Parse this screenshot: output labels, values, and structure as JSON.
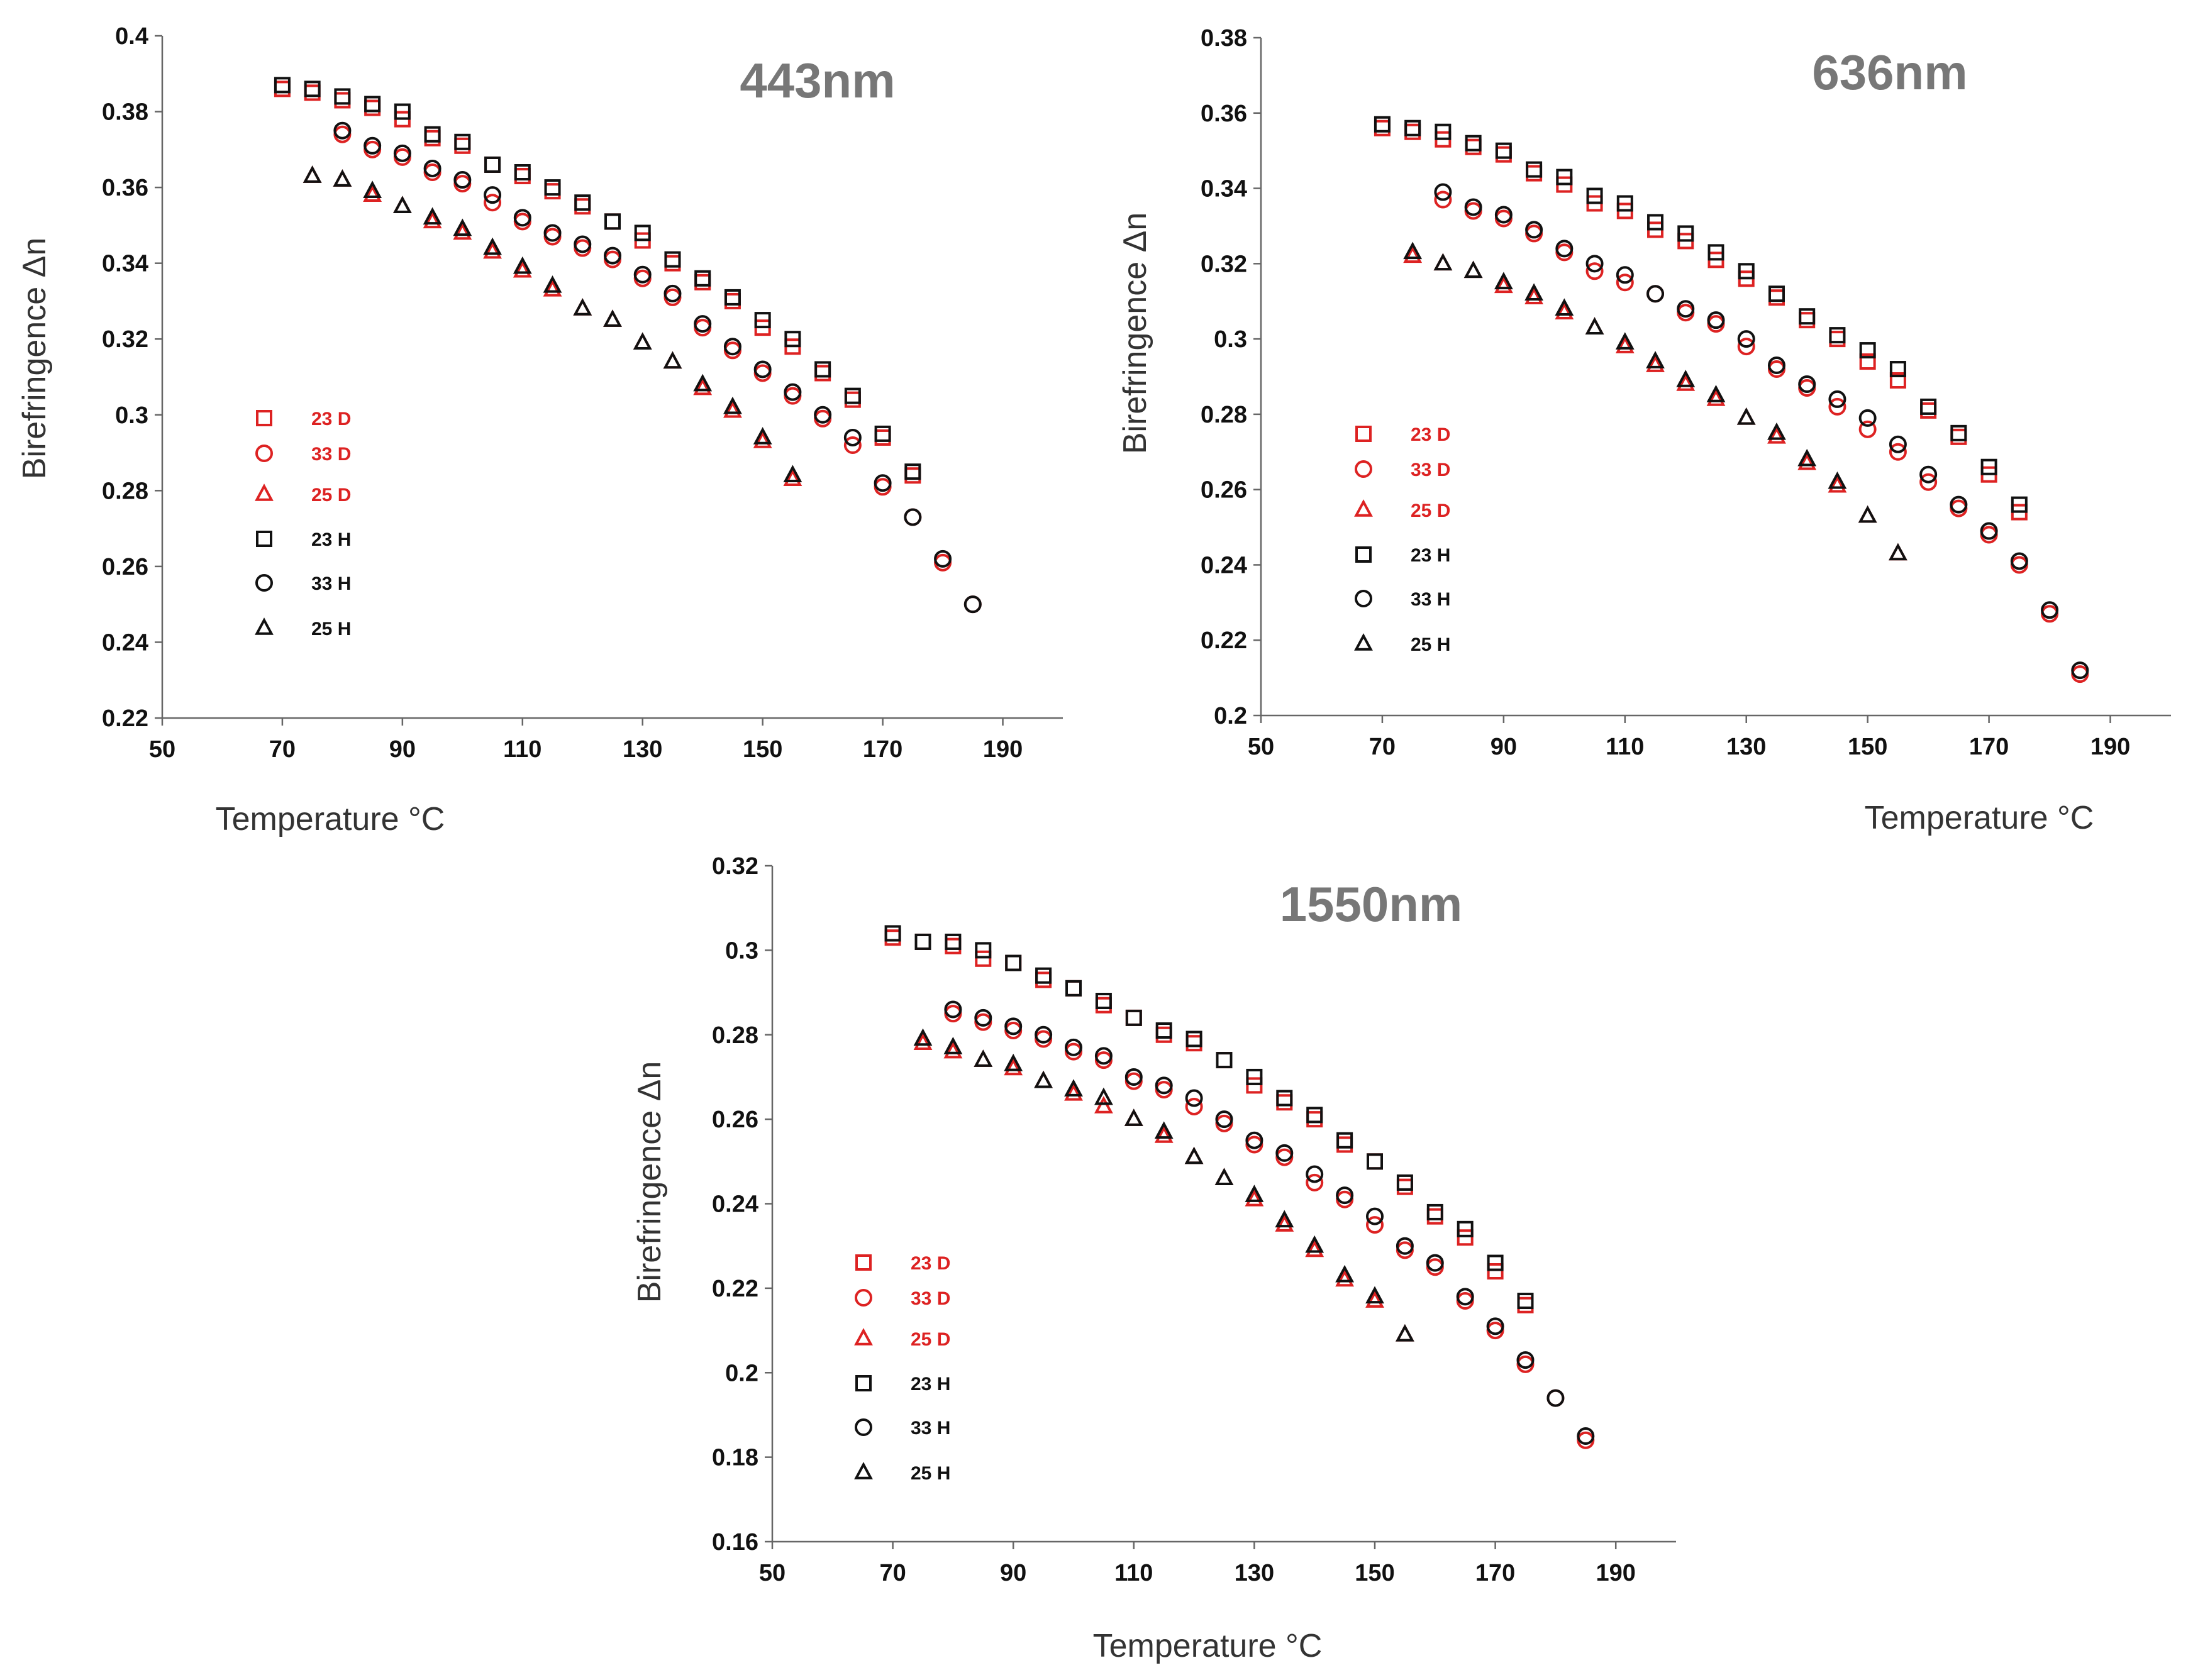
{
  "colors": {
    "series_D": "#dd2222",
    "series_H": "#111111",
    "axis": "#666666",
    "title": "#777777"
  },
  "chart_data": [
    {
      "type": "scatter",
      "title": "443nm",
      "xlabel": "Temperature °C",
      "ylabel": "Birefringence Δn",
      "xlim": [
        50,
        200
      ],
      "ylim": [
        0.22,
        0.4
      ],
      "xticks": [
        50,
        70,
        90,
        110,
        130,
        150,
        170,
        190
      ],
      "yticks": [
        "0.22",
        "0.24",
        "0.26",
        "0.28",
        "0.3",
        "0.32",
        "0.34",
        "0.36",
        "0.38",
        "0.4"
      ],
      "legend_position": "left",
      "series": [
        {
          "name": "23 D",
          "marker": "square",
          "color": "red",
          "x": [
            70,
            75,
            80,
            85,
            90,
            95,
            100,
            105,
            110,
            115,
            120,
            125,
            130,
            135,
            140,
            145,
            150,
            155,
            160,
            165,
            170,
            175
          ],
          "y": [
            0.386,
            0.385,
            0.383,
            0.381,
            0.378,
            0.373,
            0.371,
            0.366,
            0.363,
            0.359,
            0.355,
            0.351,
            0.346,
            0.34,
            0.335,
            0.33,
            0.323,
            0.318,
            0.311,
            0.304,
            0.294,
            0.284
          ]
        },
        {
          "name": "33 D",
          "marker": "circle",
          "color": "red",
          "x": [
            80,
            85,
            90,
            95,
            100,
            105,
            110,
            115,
            120,
            125,
            130,
            135,
            140,
            145,
            150,
            155,
            160,
            165,
            170,
            175,
            180,
            185
          ],
          "y": [
            0.374,
            0.37,
            0.368,
            0.364,
            0.361,
            0.356,
            0.351,
            0.347,
            0.344,
            0.341,
            0.336,
            0.331,
            0.323,
            0.317,
            0.311,
            0.305,
            0.299,
            0.292,
            0.281,
            0.273,
            0.261,
            0.25
          ]
        },
        {
          "name": "25 D",
          "marker": "triangle",
          "color": "red",
          "x": [
            75,
            80,
            85,
            90,
            95,
            100,
            105,
            110,
            115,
            120,
            125,
            130,
            135,
            140,
            145,
            150,
            155
          ],
          "y": [
            0.363,
            0.362,
            0.358,
            0.355,
            0.351,
            0.348,
            0.343,
            0.338,
            0.333,
            0.328,
            0.325,
            0.319,
            0.314,
            0.307,
            0.301,
            0.293,
            0.283
          ]
        },
        {
          "name": "23 H",
          "marker": "square",
          "color": "black",
          "x": [
            70,
            75,
            80,
            85,
            90,
            95,
            100,
            105,
            110,
            115,
            120,
            125,
            130,
            135,
            140,
            145,
            150,
            155,
            160,
            165,
            170,
            175
          ],
          "y": [
            0.387,
            0.386,
            0.384,
            0.382,
            0.38,
            0.374,
            0.372,
            0.366,
            0.364,
            0.36,
            0.356,
            0.351,
            0.348,
            0.341,
            0.336,
            0.331,
            0.325,
            0.32,
            0.312,
            0.305,
            0.295,
            0.285
          ]
        },
        {
          "name": "33 H",
          "marker": "circle",
          "color": "black",
          "x": [
            80,
            85,
            90,
            95,
            100,
            105,
            110,
            115,
            120,
            125,
            130,
            135,
            140,
            145,
            150,
            155,
            160,
            165,
            170,
            175,
            180,
            185
          ],
          "y": [
            0.375,
            0.371,
            0.369,
            0.365,
            0.362,
            0.358,
            0.352,
            0.348,
            0.345,
            0.342,
            0.337,
            0.332,
            0.324,
            0.318,
            0.312,
            0.306,
            0.3,
            0.294,
            0.282,
            0.273,
            0.262,
            0.25
          ]
        },
        {
          "name": "25 H",
          "marker": "triangle",
          "color": "black",
          "x": [
            75,
            80,
            85,
            90,
            95,
            100,
            105,
            110,
            115,
            120,
            125,
            130,
            135,
            140,
            145,
            150,
            155
          ],
          "y": [
            0.363,
            0.362,
            0.359,
            0.355,
            0.352,
            0.349,
            0.344,
            0.339,
            0.334,
            0.328,
            0.325,
            0.319,
            0.314,
            0.308,
            0.302,
            0.294,
            0.284
          ]
        }
      ]
    },
    {
      "type": "scatter",
      "title": "636nm",
      "xlabel": "Temperature °C",
      "ylabel": "Birefringence Δn",
      "xlim": [
        50,
        200
      ],
      "ylim": [
        0.2,
        0.38
      ],
      "xticks": [
        50,
        70,
        90,
        110,
        130,
        150,
        170,
        190
      ],
      "yticks": [
        "0.2",
        "0.22",
        "0.24",
        "0.26",
        "0.28",
        "0.3",
        "0.32",
        "0.34",
        "0.36",
        "0.38"
      ],
      "legend_position": "left",
      "series": [
        {
          "name": "23 D",
          "marker": "square",
          "color": "red",
          "x": [
            70,
            75,
            80,
            85,
            90,
            95,
            100,
            105,
            110,
            115,
            120,
            125,
            130,
            135,
            140,
            145,
            150,
            155,
            160,
            165,
            170,
            175
          ],
          "y": [
            0.356,
            0.355,
            0.353,
            0.351,
            0.349,
            0.344,
            0.341,
            0.336,
            0.334,
            0.329,
            0.326,
            0.321,
            0.316,
            0.311,
            0.305,
            0.3,
            0.294,
            0.289,
            0.281,
            0.274,
            0.264,
            0.254
          ]
        },
        {
          "name": "33 D",
          "marker": "circle",
          "color": "red",
          "x": [
            80,
            85,
            90,
            95,
            100,
            105,
            110,
            115,
            120,
            125,
            130,
            135,
            140,
            145,
            150,
            155,
            160,
            165,
            170,
            175,
            180,
            185
          ],
          "y": [
            0.337,
            0.334,
            0.332,
            0.328,
            0.323,
            0.318,
            0.315,
            0.312,
            0.307,
            0.304,
            0.298,
            0.292,
            0.287,
            0.282,
            0.276,
            0.27,
            0.262,
            0.255,
            0.248,
            0.24,
            0.227,
            0.211
          ]
        },
        {
          "name": "25 D",
          "marker": "triangle",
          "color": "red",
          "x": [
            75,
            80,
            85,
            90,
            95,
            100,
            105,
            110,
            115,
            120,
            125,
            130,
            135,
            140,
            145,
            150,
            155
          ],
          "y": [
            0.322,
            0.32,
            0.318,
            0.314,
            0.311,
            0.307,
            0.303,
            0.298,
            0.293,
            0.288,
            0.284,
            0.279,
            0.274,
            0.267,
            0.261,
            0.253,
            0.243
          ]
        },
        {
          "name": "23 H",
          "marker": "square",
          "color": "black",
          "x": [
            70,
            75,
            80,
            85,
            90,
            95,
            100,
            105,
            110,
            115,
            120,
            125,
            130,
            135,
            140,
            145,
            150,
            155,
            160,
            165,
            170,
            175
          ],
          "y": [
            0.357,
            0.356,
            0.355,
            0.352,
            0.35,
            0.345,
            0.343,
            0.338,
            0.336,
            0.331,
            0.328,
            0.323,
            0.318,
            0.312,
            0.306,
            0.301,
            0.297,
            0.292,
            0.282,
            0.275,
            0.266,
            0.256
          ]
        },
        {
          "name": "33 H",
          "marker": "circle",
          "color": "black",
          "x": [
            80,
            85,
            90,
            95,
            100,
            105,
            110,
            115,
            120,
            125,
            130,
            135,
            140,
            145,
            150,
            155,
            160,
            165,
            170,
            175,
            180,
            185
          ],
          "y": [
            0.339,
            0.335,
            0.333,
            0.329,
            0.324,
            0.32,
            0.317,
            0.312,
            0.308,
            0.305,
            0.3,
            0.293,
            0.288,
            0.284,
            0.279,
            0.272,
            0.264,
            0.256,
            0.249,
            0.241,
            0.228,
            0.212
          ]
        },
        {
          "name": "25 H",
          "marker": "triangle",
          "color": "black",
          "x": [
            75,
            80,
            85,
            90,
            95,
            100,
            105,
            110,
            115,
            120,
            125,
            130,
            135,
            140,
            145,
            150,
            155
          ],
          "y": [
            0.323,
            0.32,
            0.318,
            0.315,
            0.312,
            0.308,
            0.303,
            0.299,
            0.294,
            0.289,
            0.285,
            0.279,
            0.275,
            0.268,
            0.262,
            0.253,
            0.243
          ]
        }
      ]
    },
    {
      "type": "scatter",
      "title": "1550nm",
      "xlabel": "Temperature °C",
      "ylabel": "Birefringence Δn",
      "xlim": [
        50,
        200
      ],
      "ylim": [
        0.16,
        0.32
      ],
      "xticks": [
        50,
        70,
        90,
        110,
        130,
        150,
        170,
        190
      ],
      "yticks": [
        "0.16",
        "0.18",
        "0.2",
        "0.22",
        "0.24",
        "0.26",
        "0.28",
        "0.3",
        "0.32"
      ],
      "legend_position": "left",
      "series": [
        {
          "name": "23 D",
          "marker": "square",
          "color": "red",
          "x": [
            70,
            75,
            80,
            85,
            90,
            95,
            100,
            105,
            110,
            115,
            120,
            125,
            130,
            135,
            140,
            145,
            150,
            155,
            160,
            165,
            170,
            175
          ],
          "y": [
            0.303,
            0.302,
            0.301,
            0.298,
            0.297,
            0.293,
            0.291,
            0.287,
            0.284,
            0.28,
            0.278,
            0.274,
            0.268,
            0.264,
            0.26,
            0.254,
            0.25,
            0.244,
            0.237,
            0.232,
            0.224,
            0.216
          ]
        },
        {
          "name": "33 D",
          "marker": "circle",
          "color": "red",
          "x": [
            80,
            85,
            90,
            95,
            100,
            105,
            110,
            115,
            120,
            125,
            130,
            135,
            140,
            145,
            150,
            155,
            160,
            165,
            170,
            175,
            180,
            185
          ],
          "y": [
            0.285,
            0.283,
            0.281,
            0.279,
            0.276,
            0.274,
            0.269,
            0.267,
            0.263,
            0.259,
            0.254,
            0.251,
            0.245,
            0.241,
            0.235,
            0.229,
            0.225,
            0.217,
            0.21,
            0.202,
            0.194,
            0.184
          ]
        },
        {
          "name": "25 D",
          "marker": "triangle",
          "color": "red",
          "x": [
            75,
            80,
            85,
            90,
            95,
            100,
            105,
            110,
            115,
            120,
            125,
            130,
            135,
            140,
            145,
            150,
            155
          ],
          "y": [
            0.278,
            0.276,
            0.274,
            0.272,
            0.269,
            0.266,
            0.263,
            0.26,
            0.256,
            0.251,
            0.246,
            0.241,
            0.235,
            0.229,
            0.222,
            0.217,
            0.209
          ]
        },
        {
          "name": "23 H",
          "marker": "square",
          "color": "black",
          "x": [
            70,
            75,
            80,
            85,
            90,
            95,
            100,
            105,
            110,
            115,
            120,
            125,
            130,
            135,
            140,
            145,
            150,
            155,
            160,
            165,
            170,
            175
          ],
          "y": [
            0.304,
            0.302,
            0.302,
            0.3,
            0.297,
            0.294,
            0.291,
            0.288,
            0.284,
            0.281,
            0.279,
            0.274,
            0.27,
            0.265,
            0.261,
            0.255,
            0.25,
            0.245,
            0.238,
            0.234,
            0.226,
            0.217
          ]
        },
        {
          "name": "33 H",
          "marker": "circle",
          "color": "black",
          "x": [
            80,
            85,
            90,
            95,
            100,
            105,
            110,
            115,
            120,
            125,
            130,
            135,
            140,
            145,
            150,
            155,
            160,
            165,
            170,
            175,
            180,
            185
          ],
          "y": [
            0.286,
            0.284,
            0.282,
            0.28,
            0.277,
            0.275,
            0.27,
            0.268,
            0.265,
            0.26,
            0.255,
            0.252,
            0.247,
            0.242,
            0.237,
            0.23,
            0.226,
            0.218,
            0.211,
            0.203,
            0.194,
            0.185
          ]
        },
        {
          "name": "25 H",
          "marker": "triangle",
          "color": "black",
          "x": [
            75,
            80,
            85,
            90,
            95,
            100,
            105,
            110,
            115,
            120,
            125,
            130,
            135,
            140,
            145,
            150,
            155
          ],
          "y": [
            0.279,
            0.277,
            0.274,
            0.273,
            0.269,
            0.267,
            0.265,
            0.26,
            0.257,
            0.251,
            0.246,
            0.242,
            0.236,
            0.23,
            0.223,
            0.218,
            0.209
          ]
        }
      ]
    }
  ]
}
